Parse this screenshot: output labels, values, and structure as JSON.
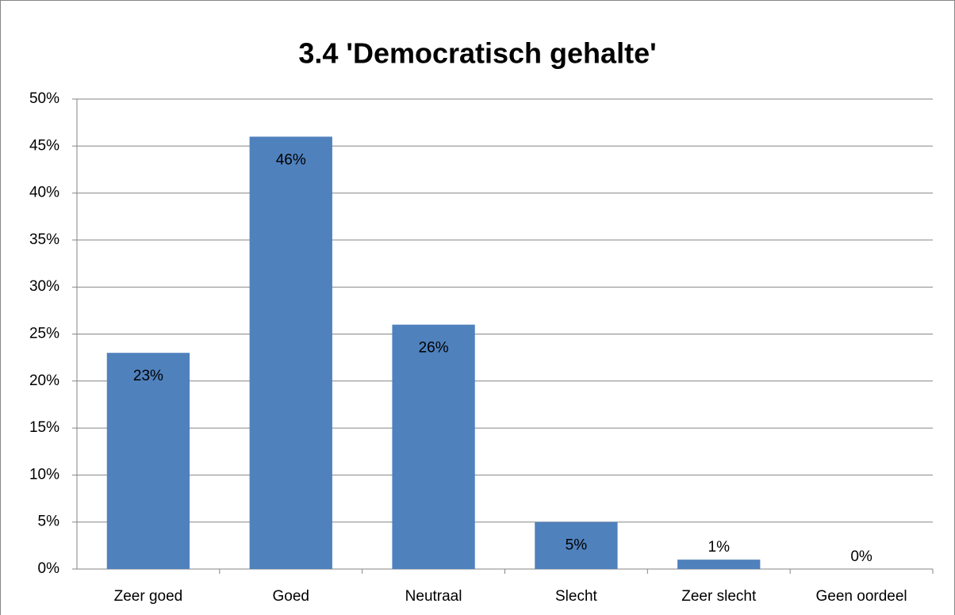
{
  "chart_data": {
    "type": "bar",
    "title": "3.4 'Democratisch gehalte'",
    "categories": [
      "Zeer goed",
      "Goed",
      "Neutraal",
      "Slecht",
      "Zeer slecht",
      "Geen oordeel"
    ],
    "values": [
      23,
      46,
      26,
      5,
      1,
      0
    ],
    "value_labels": [
      "23%",
      "46%",
      "26%",
      "5%",
      "1%",
      "0%"
    ],
    "color": "#4f81bd",
    "ylim": [
      0,
      50
    ],
    "yticks": [
      {
        "value": 0,
        "label": "0%"
      },
      {
        "value": 5,
        "label": "5%"
      },
      {
        "value": 10,
        "label": "10%"
      },
      {
        "value": 15,
        "label": "15%"
      },
      {
        "value": 20,
        "label": "20%"
      },
      {
        "value": 25,
        "label": "25%"
      },
      {
        "value": 30,
        "label": "30%"
      },
      {
        "value": 35,
        "label": "35%"
      },
      {
        "value": 40,
        "label": "40%"
      },
      {
        "value": 45,
        "label": "45%"
      },
      {
        "value": 50,
        "label": "50%"
      }
    ],
    "grid": true
  }
}
